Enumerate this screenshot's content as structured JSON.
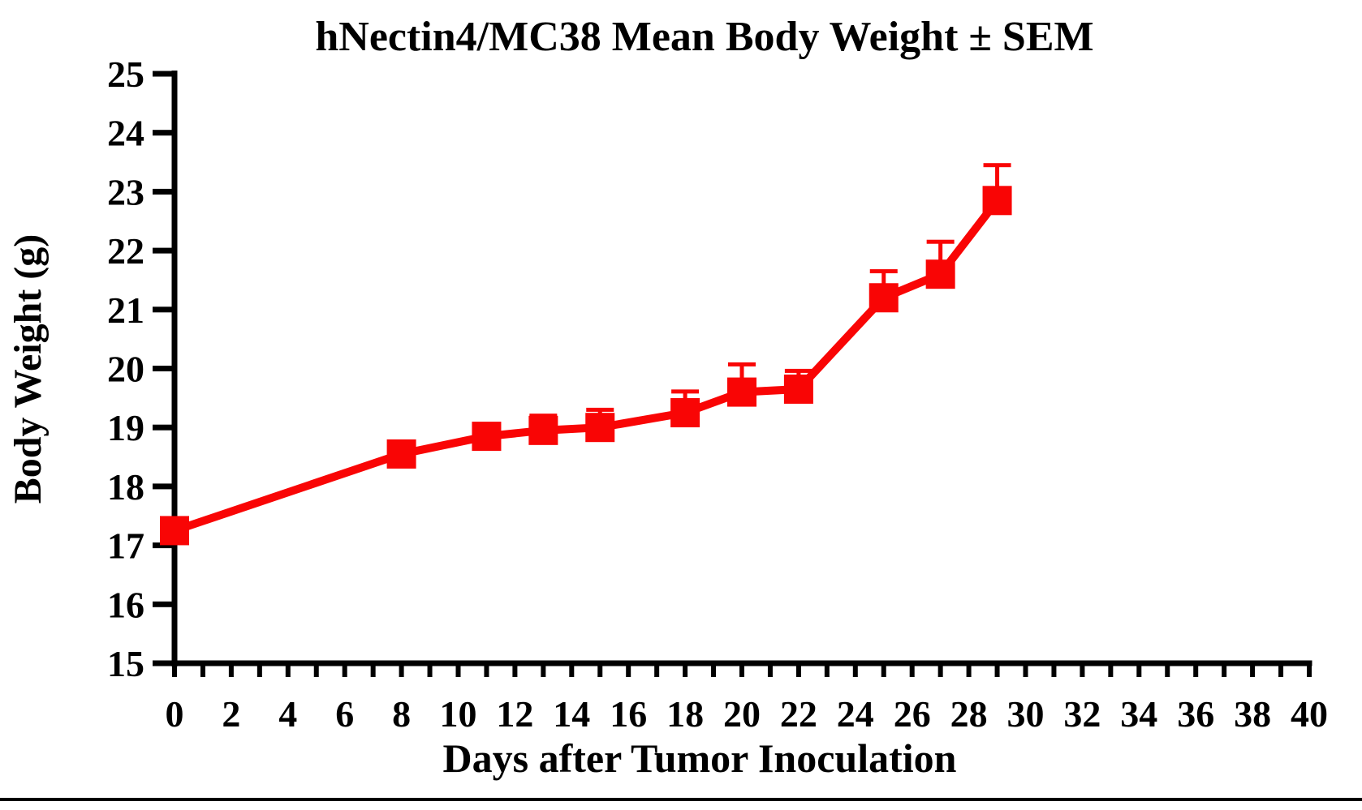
{
  "page": {
    "background_color": "#ffffff",
    "footer_rule_color": "#000000",
    "axis_color": "#000000"
  },
  "chart_data": {
    "type": "line",
    "title": "hNectin4/MC38 Mean Body Weight ± SEM",
    "xlabel": "Days after Tumor Inoculation",
    "ylabel": "Body Weight (g)",
    "xlim": [
      0,
      40
    ],
    "ylim": [
      15,
      25
    ],
    "grid": false,
    "legend": "none",
    "x_major_tick_labels": [
      0,
      2,
      4,
      6,
      8,
      10,
      12,
      14,
      16,
      18,
      20,
      22,
      24,
      26,
      28,
      30,
      32,
      34,
      36,
      38,
      40
    ],
    "x_minor_tick_step": 1,
    "y_tick_labels": [
      15,
      16,
      17,
      18,
      19,
      20,
      21,
      22,
      23,
      24,
      25
    ],
    "error_bar_direction": "up",
    "series": [
      {
        "name": "hNectin4/MC38 mean body weight",
        "color": "#f90505",
        "marker": "square",
        "x": [
          0,
          8,
          11,
          13,
          15,
          18,
          20,
          22,
          25,
          27,
          29
        ],
        "y": [
          17.25,
          18.55,
          18.85,
          18.95,
          19.0,
          19.25,
          19.6,
          19.65,
          21.2,
          21.6,
          22.85
        ],
        "sem_upper": [
          0.1,
          0.1,
          0.1,
          0.25,
          0.3,
          0.36,
          0.47,
          0.31,
          0.45,
          0.55,
          0.6
        ]
      }
    ]
  }
}
